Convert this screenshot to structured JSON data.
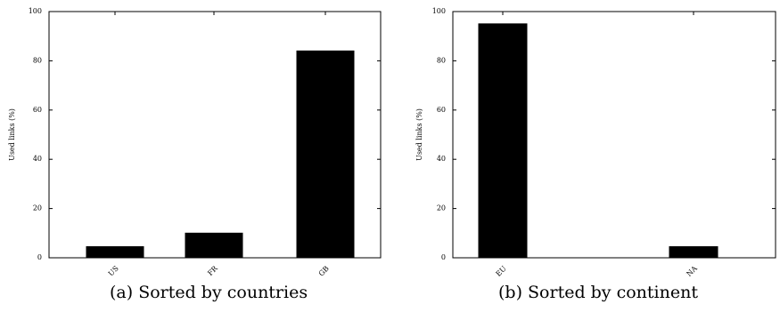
{
  "chart_data": [
    {
      "type": "bar",
      "caption": "(a) Sorted by countries",
      "categories": [
        "US",
        "FR",
        "GB"
      ],
      "values": [
        4.5,
        10,
        84
      ],
      "xlabel": "",
      "ylabel": "Used links (%)",
      "ylim": [
        0,
        100
      ],
      "yticks": [
        "0",
        "20",
        "40",
        "60",
        "80",
        "100"
      ],
      "grid": false,
      "legend": "none",
      "bar_color": "#000000"
    },
    {
      "type": "bar",
      "caption": "(b) Sorted by continent",
      "categories": [
        "EU",
        "NA"
      ],
      "values": [
        95,
        4.5
      ],
      "xlabel": "",
      "ylabel": "Used links (%)",
      "ylim": [
        0,
        100
      ],
      "yticks": [
        "0",
        "20",
        "40",
        "60",
        "80",
        "100"
      ],
      "grid": false,
      "legend": "none",
      "bar_color": "#000000"
    }
  ]
}
